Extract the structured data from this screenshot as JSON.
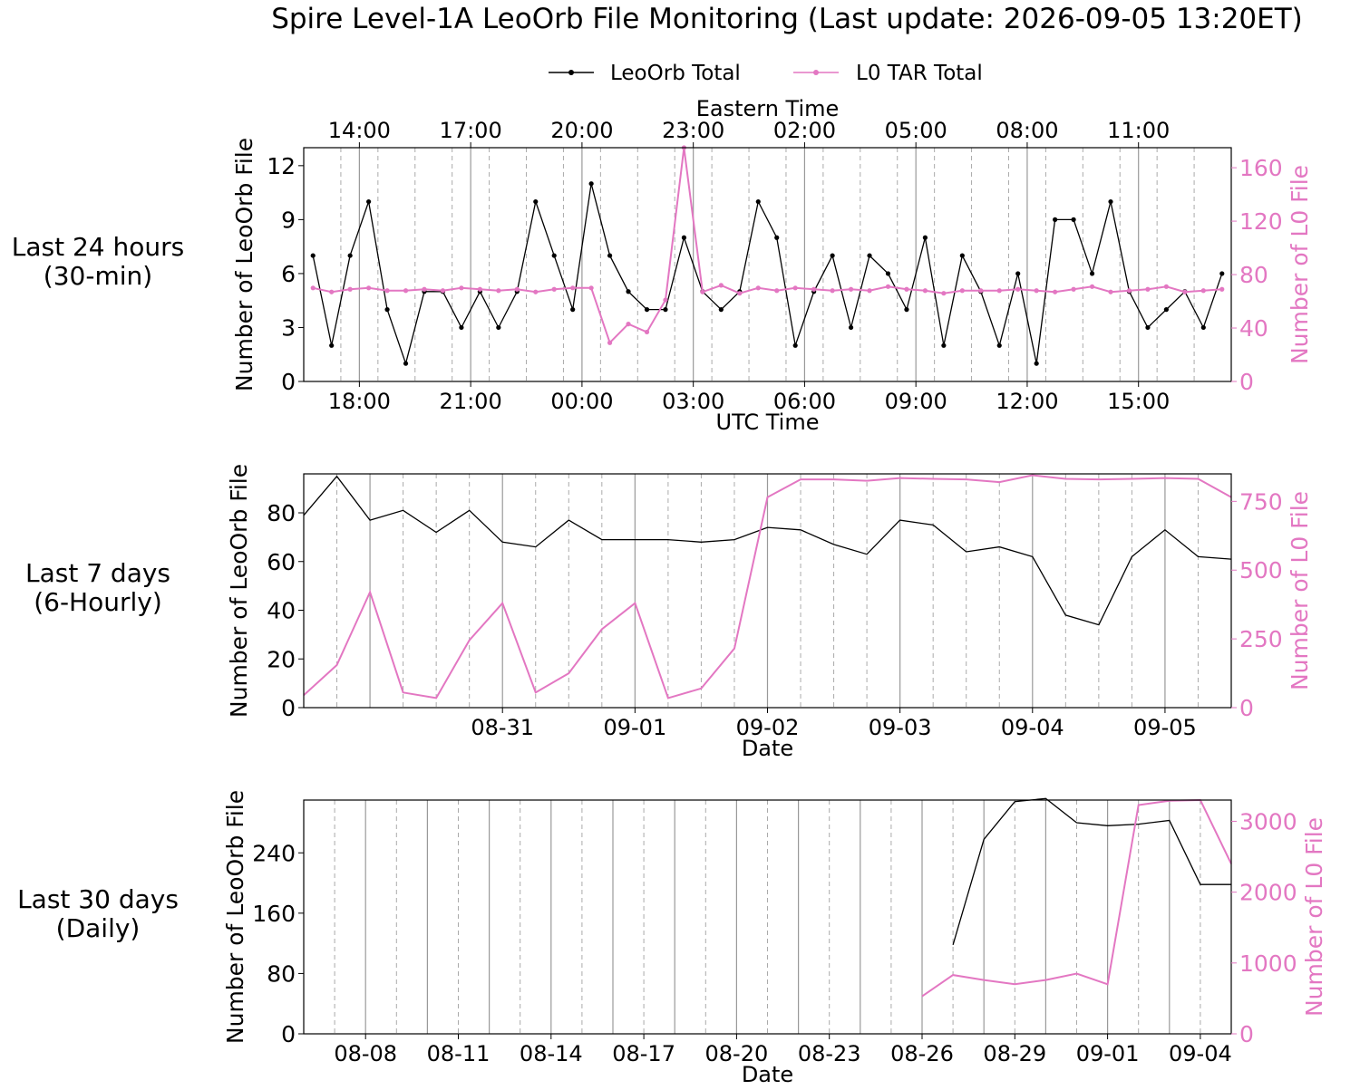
{
  "title": "Spire Level-1A LeoOrb File Monitoring (Last update: 2026-09-05 13:20ET)",
  "legend": {
    "placement": "top-center",
    "items": [
      {
        "label": "LeoOrb Total",
        "color": "#000000",
        "marker": "dot"
      },
      {
        "label": "L0 TAR Total",
        "color": "#e377c2",
        "marker": "dot"
      }
    ]
  },
  "chart_data": [
    {
      "type": "line",
      "row_label": [
        "Last 24 hours",
        "(30-min)"
      ],
      "xlabel": "UTC Time",
      "top_xlabel": "Eastern Time",
      "ylabel_left": "Number of LeoOrb File",
      "ylabel_right": "Number of L0 File",
      "x_unit": "hours since 2026-09-04 16:30 UTC",
      "xlim": [
        0,
        25
      ],
      "ylim_left": [
        0,
        13
      ],
      "ylim_right": [
        0,
        175
      ],
      "yticks_left": [
        0,
        3,
        6,
        9,
        12
      ],
      "yticks_right": [
        0,
        40,
        80,
        120,
        160
      ],
      "xticks": [
        {
          "x": 1.5,
          "label": "18:00"
        },
        {
          "x": 4.5,
          "label": "21:00"
        },
        {
          "x": 7.5,
          "label": "00:00"
        },
        {
          "x": 10.5,
          "label": "03:00"
        },
        {
          "x": 13.5,
          "label": "06:00"
        },
        {
          "x": 16.5,
          "label": "09:00"
        },
        {
          "x": 19.5,
          "label": "12:00"
        },
        {
          "x": 22.5,
          "label": "15:00"
        }
      ],
      "top_xticks": [
        {
          "x": 1.5,
          "label": "14:00"
        },
        {
          "x": 4.5,
          "label": "17:00"
        },
        {
          "x": 7.5,
          "label": "20:00"
        },
        {
          "x": 10.5,
          "label": "23:00"
        },
        {
          "x": 13.5,
          "label": "02:00"
        },
        {
          "x": 16.5,
          "label": "05:00"
        },
        {
          "x": 19.5,
          "label": "08:00"
        },
        {
          "x": 22.5,
          "label": "11:00"
        }
      ],
      "grid": {
        "solid_every": 3,
        "dashed_every": 1
      },
      "series": [
        {
          "name": "LeoOrb Total",
          "axis": "left",
          "color": "#000000",
          "markers": true,
          "x": [
            0.25,
            0.75,
            1.25,
            1.75,
            2.25,
            2.75,
            3.25,
            3.75,
            4.25,
            4.75,
            5.25,
            5.75,
            6.25,
            6.75,
            7.25,
            7.75,
            8.25,
            8.75,
            9.25,
            9.75,
            10.25,
            10.75,
            11.25,
            11.75,
            12.25,
            12.75,
            13.25,
            13.75,
            14.25,
            14.75,
            15.25,
            15.75,
            16.25,
            16.75,
            17.25,
            17.75,
            18.25,
            18.75,
            19.25,
            19.75,
            20.25,
            20.75,
            21.25,
            21.75,
            22.25,
            22.75,
            23.25,
            23.75,
            24.25,
            24.75
          ],
          "y": [
            7,
            2,
            7,
            10,
            4,
            1,
            5,
            5,
            3,
            5,
            3,
            5,
            10,
            7,
            4,
            11,
            7,
            5,
            4,
            4,
            8,
            5,
            4,
            5,
            10,
            8,
            2,
            5,
            7,
            3,
            7,
            6,
            4,
            8,
            2,
            7,
            5,
            2,
            6,
            1,
            9,
            9,
            6,
            10,
            5,
            3,
            4,
            5,
            3,
            6
          ]
        },
        {
          "name": "L0 TAR Total",
          "axis": "right",
          "color": "#e377c2",
          "markers": true,
          "x": [
            0.25,
            0.75,
            1.25,
            1.75,
            2.25,
            2.75,
            3.25,
            3.75,
            4.25,
            4.75,
            5.25,
            5.75,
            6.25,
            6.75,
            7.25,
            7.75,
            8.25,
            8.75,
            9.25,
            9.75,
            10.25,
            10.75,
            11.25,
            11.75,
            12.25,
            12.75,
            13.25,
            13.75,
            14.25,
            14.75,
            15.25,
            15.75,
            16.25,
            16.75,
            17.25,
            17.75,
            18.25,
            18.75,
            19.25,
            19.75,
            20.25,
            20.75,
            21.25,
            21.75,
            22.25,
            22.75,
            23.25,
            23.75,
            24.25,
            24.75
          ],
          "y": [
            70,
            67,
            69,
            70,
            68,
            68,
            69,
            68,
            70,
            69,
            68,
            69,
            67,
            69,
            70,
            70,
            29,
            43,
            37,
            61,
            175,
            67,
            72,
            66,
            70,
            68,
            70,
            69,
            68,
            69,
            68,
            71,
            69,
            68,
            66,
            68,
            68,
            68,
            69,
            68,
            67,
            69,
            71,
            67,
            68,
            69,
            71,
            67,
            68,
            69
          ]
        }
      ]
    },
    {
      "type": "line",
      "row_label": [
        "Last 7 days",
        "(6-Hourly)"
      ],
      "xlabel": "Date",
      "ylabel_left": "Number of LeoOrb File",
      "ylabel_right": "Number of L0 File",
      "x_unit": "days since 2026-08-29 12:00",
      "xlim": [
        0,
        7
      ],
      "ylim_left": [
        0,
        96
      ],
      "ylim_right": [
        0,
        850
      ],
      "yticks_left": [
        0,
        20,
        40,
        60,
        80
      ],
      "yticks_right": [
        0,
        250,
        500,
        750
      ],
      "xticks": [
        {
          "x": 1.5,
          "label": "08-31"
        },
        {
          "x": 2.5,
          "label": "09-01"
        },
        {
          "x": 3.5,
          "label": "09-02"
        },
        {
          "x": 4.5,
          "label": "09-03"
        },
        {
          "x": 5.5,
          "label": "09-04"
        },
        {
          "x": 6.5,
          "label": "09-05"
        }
      ],
      "grid": {
        "solid_positions": [
          0.5,
          1.5,
          2.5,
          3.5,
          4.5,
          5.5,
          6.5
        ],
        "dashed_step": 0.25
      },
      "series": [
        {
          "name": "LeoOrb Total",
          "axis": "left",
          "color": "#000000",
          "markers": false,
          "x": [
            0,
            0.25,
            0.5,
            0.75,
            1,
            1.25,
            1.5,
            1.75,
            2,
            2.25,
            2.5,
            2.75,
            3,
            3.25,
            3.5,
            3.75,
            4,
            4.25,
            4.5,
            4.75,
            5,
            5.25,
            5.5,
            5.75,
            6,
            6.25,
            6.5,
            6.75,
            7
          ],
          "y": [
            79,
            95,
            77,
            81,
            72,
            81,
            68,
            66,
            77,
            69,
            69,
            69,
            68,
            69,
            74,
            73,
            67,
            63,
            77,
            75,
            64,
            66,
            62,
            38,
            34,
            62,
            73,
            62,
            61
          ]
        },
        {
          "name": "L0 TAR Total",
          "axis": "right",
          "color": "#e377c2",
          "markers": false,
          "x": [
            0,
            0.25,
            0.5,
            0.75,
            1,
            1.25,
            1.5,
            1.75,
            2,
            2.25,
            2.5,
            2.75,
            3,
            3.25,
            3.5,
            3.75,
            4,
            4.25,
            4.5,
            4.75,
            5,
            5.25,
            5.5,
            5.75,
            6,
            6.25,
            6.5,
            6.75,
            7
          ],
          "y": [
            45,
            155,
            420,
            55,
            35,
            245,
            380,
            55,
            125,
            285,
            380,
            35,
            70,
            215,
            765,
            830,
            830,
            825,
            835,
            832,
            830,
            820,
            845,
            832,
            830,
            832,
            835,
            832,
            765
          ]
        }
      ]
    },
    {
      "type": "line",
      "row_label": [
        "Last 30 days",
        "(Daily)"
      ],
      "xlabel": "Date",
      "ylabel_left": "Number of LeoOrb File",
      "ylabel_right": "Number of L0 File",
      "x_unit": "days since 2026-08-06",
      "xlim": [
        0,
        30
      ],
      "ylim_left": [
        0,
        310
      ],
      "ylim_right": [
        0,
        3300
      ],
      "yticks_left": [
        0,
        80,
        160,
        240
      ],
      "yticks_right": [
        0,
        1000,
        2000,
        3000
      ],
      "xticks": [
        {
          "x": 2,
          "label": "08-08"
        },
        {
          "x": 5,
          "label": "08-11"
        },
        {
          "x": 8,
          "label": "08-14"
        },
        {
          "x": 11,
          "label": "08-17"
        },
        {
          "x": 14,
          "label": "08-20"
        },
        {
          "x": 17,
          "label": "08-23"
        },
        {
          "x": 20,
          "label": "08-26"
        },
        {
          "x": 23,
          "label": "08-29"
        },
        {
          "x": 26,
          "label": "09-01"
        },
        {
          "x": 29,
          "label": "09-04"
        }
      ],
      "grid": {
        "solid_every": 2,
        "dashed_offset": 1,
        "dashed_every": 2
      },
      "series": [
        {
          "name": "LeoOrb Total",
          "axis": "left",
          "color": "#000000",
          "markers": false,
          "x": [
            21,
            22,
            23,
            24,
            25,
            26,
            27,
            28,
            29,
            30
          ],
          "y": [
            118,
            258,
            308,
            312,
            280,
            276,
            278,
            283,
            198,
            198
          ]
        },
        {
          "name": "L0 TAR Total",
          "axis": "right",
          "color": "#e377c2",
          "markers": false,
          "x": [
            20,
            21,
            22,
            23,
            24,
            25,
            26,
            27,
            28,
            29,
            30
          ],
          "y": [
            530,
            830,
            760,
            700,
            760,
            850,
            700,
            3230,
            3290,
            3300,
            2400
          ]
        }
      ]
    }
  ]
}
